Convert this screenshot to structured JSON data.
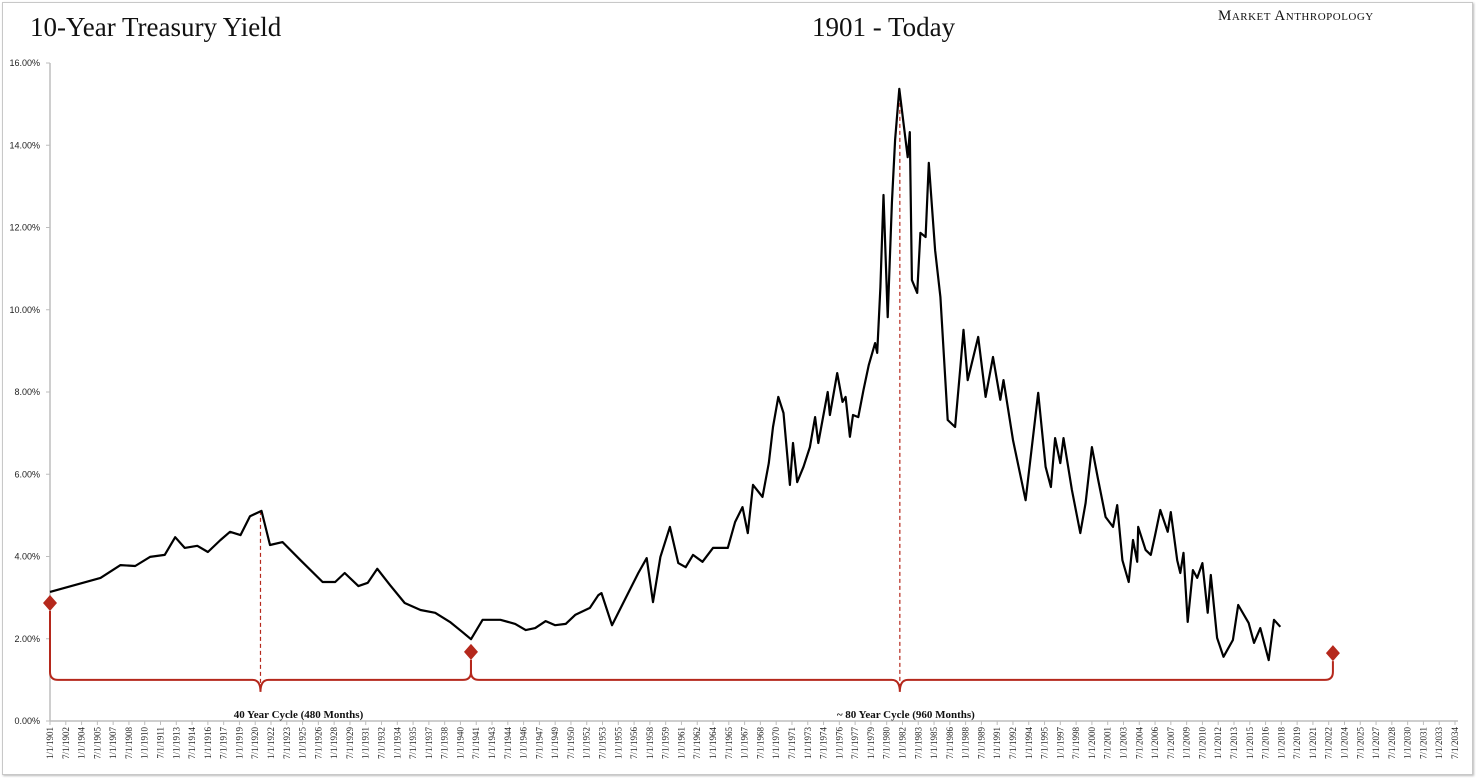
{
  "chart_data": {
    "type": "line",
    "title": "10-Year Treasury Yield",
    "subtitle": "1901 - Today",
    "brand": "Market Anthropology",
    "xlabel": "",
    "ylabel": "",
    "ylim": [
      0,
      16
    ],
    "xlim": [
      1901,
      2034.5
    ],
    "grid": false,
    "legend": "none",
    "y_ticks": [
      "0.00%",
      "2.00%",
      "4.00%",
      "6.00%",
      "8.00%",
      "10.00%",
      "12.00%",
      "14.00%",
      "16.00%"
    ],
    "x_ticks": [
      "1/1/1901",
      "7/1/1902",
      "1/1/1904",
      "7/1/1905",
      "1/1/1907",
      "7/1/1908",
      "1/1/1910",
      "7/1/1911",
      "1/1/1913",
      "7/1/1914",
      "1/1/1916",
      "7/1/1917",
      "1/1/1919",
      "7/1/1920",
      "1/1/1922",
      "7/1/1923",
      "1/1/1925",
      "7/1/1926",
      "1/1/1928",
      "7/1/1929",
      "1/1/1931",
      "7/1/1932",
      "1/1/1934",
      "7/1/1935",
      "1/1/1937",
      "7/1/1938",
      "1/1/1940",
      "7/1/1941",
      "1/1/1943",
      "7/1/1944",
      "1/1/1946",
      "7/1/1947",
      "1/1/1949",
      "7/1/1950",
      "1/1/1952",
      "7/1/1953",
      "1/1/1955",
      "7/1/1956",
      "1/1/1958",
      "7/1/1959",
      "1/1/1961",
      "7/1/1962",
      "1/1/1964",
      "7/1/1965",
      "1/1/1967",
      "7/1/1968",
      "1/1/1970",
      "7/1/1971",
      "1/1/1973",
      "7/1/1974",
      "1/1/1976",
      "7/1/1977",
      "1/1/1979",
      "7/1/1980",
      "1/1/1982",
      "7/1/1983",
      "1/1/1985",
      "7/1/1986",
      "1/1/1988",
      "7/1/1989",
      "1/1/1991",
      "7/1/1992",
      "1/1/1994",
      "7/1/1995",
      "1/1/1997",
      "7/1/1998",
      "1/1/2000",
      "7/1/2001",
      "1/1/2003",
      "7/1/2004",
      "1/1/2006",
      "7/1/2007",
      "1/1/2009",
      "7/1/2010",
      "1/1/2012",
      "7/1/2013",
      "1/1/2015",
      "7/1/2016",
      "1/1/2018",
      "7/1/2019",
      "1/1/2021",
      "7/1/2022",
      "1/1/2024",
      "7/1/2025",
      "1/1/2027",
      "7/1/2028",
      "1/1/2030",
      "7/1/2031",
      "1/1/2033",
      "7/1/2034"
    ],
    "series": [
      {
        "name": "10-Year Treasury Yield (%)",
        "color": "#000000",
        "points": [
          [
            1901.0,
            3.14
          ],
          [
            1905.8,
            3.48
          ],
          [
            1907.7,
            3.79
          ],
          [
            1909.1,
            3.77
          ],
          [
            1910.5,
            3.99
          ],
          [
            1911.9,
            4.04
          ],
          [
            1912.9,
            4.47
          ],
          [
            1913.8,
            4.21
          ],
          [
            1915.0,
            4.26
          ],
          [
            1916.0,
            4.11
          ],
          [
            1917.2,
            4.4
          ],
          [
            1918.1,
            4.6
          ],
          [
            1919.1,
            4.52
          ],
          [
            1920.0,
            4.98
          ],
          [
            1921.1,
            5.11
          ],
          [
            1921.9,
            4.28
          ],
          [
            1923.1,
            4.35
          ],
          [
            1924.8,
            3.91
          ],
          [
            1926.9,
            3.38
          ],
          [
            1928.1,
            3.38
          ],
          [
            1929.0,
            3.6
          ],
          [
            1930.3,
            3.28
          ],
          [
            1931.2,
            3.36
          ],
          [
            1932.1,
            3.7
          ],
          [
            1933.3,
            3.31
          ],
          [
            1934.7,
            2.87
          ],
          [
            1936.2,
            2.7
          ],
          [
            1937.6,
            2.63
          ],
          [
            1939.0,
            2.41
          ],
          [
            1940.2,
            2.16
          ],
          [
            1941.0,
            1.99
          ],
          [
            1942.1,
            2.46
          ],
          [
            1943.8,
            2.46
          ],
          [
            1945.2,
            2.36
          ],
          [
            1946.2,
            2.21
          ],
          [
            1947.1,
            2.26
          ],
          [
            1948.1,
            2.43
          ],
          [
            1949.0,
            2.33
          ],
          [
            1950.0,
            2.36
          ],
          [
            1950.9,
            2.58
          ],
          [
            1952.3,
            2.75
          ],
          [
            1953.1,
            3.06
          ],
          [
            1953.4,
            3.11
          ],
          [
            1954.4,
            2.33
          ],
          [
            1955.7,
            2.99
          ],
          [
            1956.9,
            3.6
          ],
          [
            1957.7,
            3.96
          ],
          [
            1958.3,
            2.89
          ],
          [
            1959.0,
            3.99
          ],
          [
            1959.9,
            4.72
          ],
          [
            1960.7,
            3.84
          ],
          [
            1961.4,
            3.74
          ],
          [
            1962.1,
            4.04
          ],
          [
            1963.0,
            3.87
          ],
          [
            1964.0,
            4.21
          ],
          [
            1965.4,
            4.21
          ],
          [
            1966.1,
            4.84
          ],
          [
            1966.8,
            5.2
          ],
          [
            1967.3,
            4.57
          ],
          [
            1967.8,
            5.74
          ],
          [
            1968.7,
            5.45
          ],
          [
            1969.3,
            6.27
          ],
          [
            1969.7,
            7.15
          ],
          [
            1970.2,
            7.88
          ],
          [
            1970.7,
            7.49
          ],
          [
            1971.3,
            5.74
          ],
          [
            1971.6,
            6.76
          ],
          [
            1972.0,
            5.81
          ],
          [
            1972.6,
            6.18
          ],
          [
            1973.2,
            6.66
          ],
          [
            1973.7,
            7.39
          ],
          [
            1974.0,
            6.76
          ],
          [
            1974.9,
            8.0
          ],
          [
            1975.1,
            7.44
          ],
          [
            1975.8,
            8.46
          ],
          [
            1976.3,
            7.76
          ],
          [
            1976.6,
            7.88
          ],
          [
            1977.0,
            6.91
          ],
          [
            1977.3,
            7.44
          ],
          [
            1977.8,
            7.39
          ],
          [
            1978.3,
            8.05
          ],
          [
            1978.8,
            8.66
          ],
          [
            1979.4,
            9.19
          ],
          [
            1979.6,
            8.95
          ],
          [
            1979.9,
            10.55
          ],
          [
            1980.2,
            12.79
          ],
          [
            1980.6,
            9.82
          ],
          [
            1981.0,
            12.6
          ],
          [
            1981.3,
            14.13
          ],
          [
            1981.7,
            15.37
          ],
          [
            1982.1,
            14.54
          ],
          [
            1982.5,
            13.71
          ],
          [
            1982.7,
            14.32
          ],
          [
            1982.9,
            10.72
          ],
          [
            1983.4,
            10.41
          ],
          [
            1983.7,
            11.87
          ],
          [
            1984.2,
            11.77
          ],
          [
            1984.5,
            13.57
          ],
          [
            1985.1,
            11.45
          ],
          [
            1985.6,
            10.31
          ],
          [
            1986.3,
            7.32
          ],
          [
            1987.0,
            7.15
          ],
          [
            1987.5,
            8.61
          ],
          [
            1987.8,
            9.51
          ],
          [
            1988.2,
            8.29
          ],
          [
            1989.2,
            9.34
          ],
          [
            1989.9,
            7.88
          ],
          [
            1990.6,
            8.85
          ],
          [
            1991.3,
            7.81
          ],
          [
            1991.6,
            8.29
          ],
          [
            1992.5,
            6.83
          ],
          [
            1993.7,
            5.37
          ],
          [
            1994.9,
            7.98
          ],
          [
            1995.6,
            6.18
          ],
          [
            1996.1,
            5.69
          ],
          [
            1996.5,
            6.88
          ],
          [
            1997.0,
            6.27
          ],
          [
            1997.3,
            6.88
          ],
          [
            1998.1,
            5.62
          ],
          [
            1998.9,
            4.57
          ],
          [
            1999.4,
            5.3
          ],
          [
            2000.0,
            6.66
          ],
          [
            2000.6,
            5.86
          ],
          [
            2001.3,
            4.96
          ],
          [
            2002.0,
            4.72
          ],
          [
            2002.4,
            5.25
          ],
          [
            2002.9,
            3.91
          ],
          [
            2003.5,
            3.38
          ],
          [
            2003.9,
            4.4
          ],
          [
            2004.3,
            3.87
          ],
          [
            2004.4,
            4.72
          ],
          [
            2005.1,
            4.16
          ],
          [
            2005.6,
            4.04
          ],
          [
            2006.0,
            4.52
          ],
          [
            2006.5,
            5.13
          ],
          [
            2007.2,
            4.6
          ],
          [
            2007.5,
            5.08
          ],
          [
            2008.1,
            3.91
          ],
          [
            2008.4,
            3.6
          ],
          [
            2008.7,
            4.09
          ],
          [
            2009.1,
            2.41
          ],
          [
            2009.6,
            3.67
          ],
          [
            2010.0,
            3.48
          ],
          [
            2010.5,
            3.84
          ],
          [
            2011.0,
            2.63
          ],
          [
            2011.3,
            3.55
          ],
          [
            2011.9,
            2.02
          ],
          [
            2012.5,
            1.56
          ],
          [
            2013.4,
            1.97
          ],
          [
            2013.9,
            2.82
          ],
          [
            2014.9,
            2.38
          ],
          [
            2015.4,
            1.9
          ],
          [
            2016.0,
            2.26
          ],
          [
            2016.8,
            1.48
          ],
          [
            2017.3,
            2.46
          ],
          [
            2017.9,
            2.29
          ]
        ]
      }
    ],
    "annotations": {
      "color": "#b5281c",
      "markers": [
        [
          1901.0,
          2.87
        ],
        [
          1941.0,
          1.68
        ],
        [
          2022.9,
          1.65
        ]
      ],
      "brace_level": 1.0,
      "cycles": [
        {
          "label": "40 Year Cycle (480 Months)",
          "from": 1901.0,
          "to": 1941.0,
          "tip": 1921.0,
          "tip_value": 5.11
        },
        {
          "label": "~ 80 Year Cycle (960 Months)",
          "from": 1941.0,
          "to": 2022.9,
          "tip": 1981.75,
          "tip_value": 15.37
        }
      ]
    }
  }
}
